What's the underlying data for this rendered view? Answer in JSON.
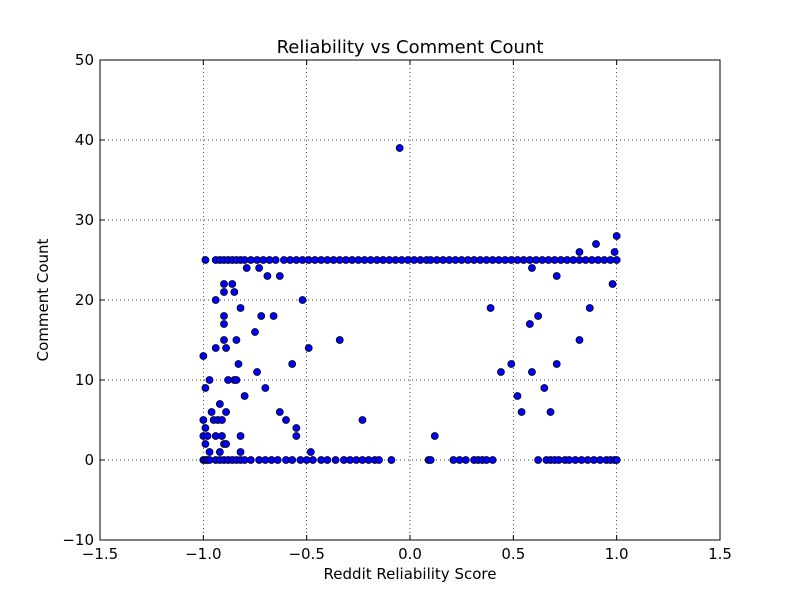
{
  "chart_data": {
    "type": "scatter",
    "title": "Reliability vs Comment Count",
    "xlabel": "Reddit Reliability Score",
    "ylabel": "Comment Count",
    "xlim": [
      -1.5,
      1.5
    ],
    "ylim": [
      -10,
      50
    ],
    "xticks": [
      -1.5,
      -1.0,
      -0.5,
      0.0,
      0.5,
      1.0,
      1.5
    ],
    "xtick_labels": [
      "−1.5",
      "−1.0",
      "−0.5",
      "0.0",
      "0.5",
      "1.0",
      "1.5"
    ],
    "yticks": [
      -10,
      0,
      10,
      20,
      30,
      40,
      50
    ],
    "ytick_labels": [
      "−10",
      "0",
      "10",
      "20",
      "30",
      "40",
      "50"
    ],
    "grid": true,
    "marker_color": "#0000ff",
    "points": [
      [
        -1.0,
        0
      ],
      [
        -0.99,
        0
      ],
      [
        -0.98,
        0
      ],
      [
        -0.97,
        0
      ],
      [
        -0.94,
        0
      ],
      [
        -0.92,
        0
      ],
      [
        -0.9,
        0
      ],
      [
        -0.88,
        0
      ],
      [
        -0.86,
        0
      ],
      [
        -0.84,
        0
      ],
      [
        -0.82,
        0
      ],
      [
        -0.8,
        0
      ],
      [
        -0.77,
        0
      ],
      [
        -0.73,
        0
      ],
      [
        -0.7,
        0
      ],
      [
        -0.67,
        0
      ],
      [
        -0.64,
        0
      ],
      [
        -0.6,
        0
      ],
      [
        -0.57,
        0
      ],
      [
        -0.53,
        0
      ],
      [
        -0.5,
        0
      ],
      [
        -0.47,
        0
      ],
      [
        -0.43,
        0
      ],
      [
        -0.4,
        0
      ],
      [
        -0.36,
        0
      ],
      [
        -0.32,
        0
      ],
      [
        -0.29,
        0
      ],
      [
        -0.26,
        0
      ],
      [
        -0.23,
        0
      ],
      [
        -0.2,
        0
      ],
      [
        -0.17,
        0
      ],
      [
        -0.15,
        0
      ],
      [
        -0.09,
        0
      ],
      [
        0.09,
        0
      ],
      [
        0.1,
        0
      ],
      [
        0.21,
        0
      ],
      [
        0.24,
        0
      ],
      [
        0.27,
        0
      ],
      [
        0.31,
        0
      ],
      [
        0.33,
        0
      ],
      [
        0.35,
        0
      ],
      [
        0.37,
        0
      ],
      [
        0.4,
        0
      ],
      [
        0.62,
        0
      ],
      [
        0.66,
        0
      ],
      [
        0.68,
        0
      ],
      [
        0.7,
        0
      ],
      [
        0.72,
        0
      ],
      [
        0.75,
        0
      ],
      [
        0.77,
        0
      ],
      [
        0.8,
        0
      ],
      [
        0.83,
        0
      ],
      [
        0.86,
        0
      ],
      [
        0.89,
        0
      ],
      [
        0.92,
        0
      ],
      [
        0.95,
        0
      ],
      [
        0.97,
        0
      ],
      [
        0.99,
        0
      ],
      [
        1.0,
        0
      ],
      [
        -0.99,
        25
      ],
      [
        -0.94,
        25
      ],
      [
        -0.92,
        25
      ],
      [
        -0.9,
        25
      ],
      [
        -0.88,
        25
      ],
      [
        -0.86,
        25
      ],
      [
        -0.84,
        25
      ],
      [
        -0.82,
        25
      ],
      [
        -0.8,
        25
      ],
      [
        -0.77,
        25
      ],
      [
        -0.74,
        25
      ],
      [
        -0.71,
        25
      ],
      [
        -0.68,
        25
      ],
      [
        -0.65,
        25
      ],
      [
        -0.61,
        25
      ],
      [
        -0.58,
        25
      ],
      [
        -0.55,
        25
      ],
      [
        -0.52,
        25
      ],
      [
        -0.49,
        25
      ],
      [
        -0.46,
        25
      ],
      [
        -0.43,
        25
      ],
      [
        -0.4,
        25
      ],
      [
        -0.37,
        25
      ],
      [
        -0.34,
        25
      ],
      [
        -0.31,
        25
      ],
      [
        -0.28,
        25
      ],
      [
        -0.25,
        25
      ],
      [
        -0.22,
        25
      ],
      [
        -0.19,
        25
      ],
      [
        -0.16,
        25
      ],
      [
        -0.13,
        25
      ],
      [
        -0.1,
        25
      ],
      [
        -0.07,
        25
      ],
      [
        -0.04,
        25
      ],
      [
        -0.01,
        25
      ],
      [
        0.02,
        25
      ],
      [
        0.05,
        25
      ],
      [
        0.08,
        25
      ],
      [
        0.1,
        25
      ],
      [
        0.13,
        25
      ],
      [
        0.16,
        25
      ],
      [
        0.19,
        25
      ],
      [
        0.22,
        25
      ],
      [
        0.25,
        25
      ],
      [
        0.28,
        25
      ],
      [
        0.31,
        25
      ],
      [
        0.34,
        25
      ],
      [
        0.37,
        25
      ],
      [
        0.4,
        25
      ],
      [
        0.43,
        25
      ],
      [
        0.46,
        25
      ],
      [
        0.49,
        25
      ],
      [
        0.52,
        25
      ],
      [
        0.55,
        25
      ],
      [
        0.58,
        25
      ],
      [
        0.61,
        25
      ],
      [
        0.64,
        25
      ],
      [
        0.67,
        25
      ],
      [
        0.7,
        25
      ],
      [
        0.73,
        25
      ],
      [
        0.76,
        25
      ],
      [
        0.79,
        25
      ],
      [
        0.82,
        25
      ],
      [
        0.85,
        25
      ],
      [
        0.88,
        25
      ],
      [
        0.91,
        25
      ],
      [
        0.94,
        25
      ],
      [
        0.97,
        25
      ],
      [
        1.0,
        25
      ],
      [
        -0.05,
        39
      ],
      [
        -1.0,
        13
      ],
      [
        -0.99,
        9
      ],
      [
        -0.97,
        10
      ],
      [
        -0.99,
        2
      ],
      [
        -1.0,
        3
      ],
      [
        -0.99,
        4
      ],
      [
        -1.0,
        5
      ],
      [
        -0.98,
        3
      ],
      [
        -0.97,
        1
      ],
      [
        -0.96,
        6
      ],
      [
        -0.95,
        5
      ],
      [
        -0.94,
        3
      ],
      [
        -0.94,
        14
      ],
      [
        -0.94,
        20
      ],
      [
        -0.93,
        5
      ],
      [
        -0.92,
        1
      ],
      [
        -0.92,
        7
      ],
      [
        -0.91,
        5
      ],
      [
        -0.91,
        3
      ],
      [
        -0.9,
        2
      ],
      [
        -0.9,
        15
      ],
      [
        -0.9,
        17
      ],
      [
        -0.9,
        18
      ],
      [
        -0.9,
        21
      ],
      [
        -0.9,
        22
      ],
      [
        -0.89,
        14
      ],
      [
        -0.89,
        6
      ],
      [
        -0.89,
        2
      ],
      [
        -0.88,
        10
      ],
      [
        -0.86,
        22
      ],
      [
        -0.85,
        21
      ],
      [
        -0.85,
        10
      ],
      [
        -0.84,
        15
      ],
      [
        -0.84,
        10
      ],
      [
        -0.83,
        12
      ],
      [
        -0.82,
        19
      ],
      [
        -0.82,
        3
      ],
      [
        -0.82,
        1
      ],
      [
        -0.8,
        8
      ],
      [
        -0.79,
        24
      ],
      [
        -0.75,
        16
      ],
      [
        -0.74,
        11
      ],
      [
        -0.73,
        24
      ],
      [
        -0.72,
        18
      ],
      [
        -0.7,
        9
      ],
      [
        -0.69,
        23
      ],
      [
        -0.66,
        18
      ],
      [
        -0.63,
        23
      ],
      [
        -0.63,
        6
      ],
      [
        -0.6,
        5
      ],
      [
        -0.57,
        12
      ],
      [
        -0.55,
        4
      ],
      [
        -0.55,
        3
      ],
      [
        -0.52,
        20
      ],
      [
        -0.49,
        14
      ],
      [
        -0.48,
        1
      ],
      [
        -0.34,
        15
      ],
      [
        -0.23,
        5
      ],
      [
        0.12,
        3
      ],
      [
        0.39,
        19
      ],
      [
        0.44,
        11
      ],
      [
        0.49,
        12
      ],
      [
        0.52,
        8
      ],
      [
        0.54,
        6
      ],
      [
        0.58,
        17
      ],
      [
        0.59,
        24
      ],
      [
        0.59,
        11
      ],
      [
        0.62,
        18
      ],
      [
        0.65,
        9
      ],
      [
        0.68,
        6
      ],
      [
        0.71,
        12
      ],
      [
        0.71,
        23
      ],
      [
        0.82,
        15
      ],
      [
        0.82,
        26
      ],
      [
        0.87,
        19
      ],
      [
        0.9,
        27
      ],
      [
        0.98,
        22
      ],
      [
        0.99,
        26
      ],
      [
        1.0,
        28
      ]
    ]
  }
}
